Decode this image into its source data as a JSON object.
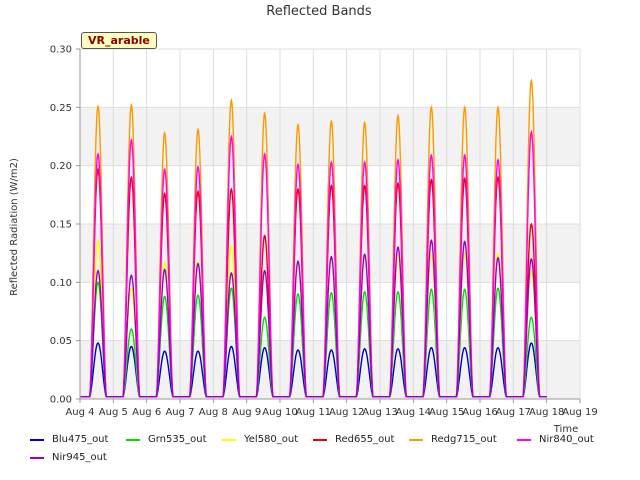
{
  "chart_data": {
    "type": "line",
    "title": "Reflected Bands",
    "xlabel": "Time",
    "ylabel": "Reflected Radiation (W/m2)",
    "ylim": [
      0.0,
      0.3
    ],
    "yticks": [
      "0.00",
      "0.05",
      "0.10",
      "0.15",
      "0.20",
      "0.25",
      "0.30"
    ],
    "xlim": [
      "Aug 4",
      "Aug 19"
    ],
    "xticks": [
      "Aug 4",
      "Aug 5",
      "Aug 6",
      "Aug 7",
      "Aug 8",
      "Aug 9",
      "Aug 10",
      "Aug 11",
      "Aug 12",
      "Aug 13",
      "Aug 14",
      "Aug 15",
      "Aug 16",
      "Aug 17",
      "Aug 18",
      "Aug 19"
    ],
    "grid": true,
    "legend_position": "bottom",
    "annotation": "VR_arable",
    "series": [
      {
        "name": "Blu475_out",
        "color": "#0000cc",
        "daily_peak": [
          0.048,
          0.045,
          0.041,
          0.041,
          0.045,
          0.044,
          0.042,
          0.042,
          0.043,
          0.043,
          0.044,
          0.044,
          0.044,
          0.048
        ]
      },
      {
        "name": "Grn535_out",
        "color": "#00dd00",
        "daily_peak": [
          0.1,
          0.06,
          0.088,
          0.089,
          0.095,
          0.07,
          0.09,
          0.091,
          0.092,
          0.092,
          0.094,
          0.094,
          0.095,
          0.07
        ]
      },
      {
        "name": "Yel580_out",
        "color": "#ffff00",
        "daily_peak": [
          0.136,
          0.095,
          0.117,
          0.118,
          0.131,
          0.11,
          0.118,
          0.121,
          0.123,
          0.123,
          0.124,
          0.125,
          0.125,
          0.11
        ]
      },
      {
        "name": "Red655_out",
        "color": "#ee0000",
        "daily_peak": [
          0.197,
          0.19,
          0.176,
          0.178,
          0.18,
          0.14,
          0.18,
          0.183,
          0.183,
          0.185,
          0.188,
          0.189,
          0.19,
          0.15
        ]
      },
      {
        "name": "Redg715_out",
        "color": "#ff9900",
        "daily_peak": [
          0.251,
          0.252,
          0.228,
          0.231,
          0.256,
          0.245,
          0.235,
          0.238,
          0.237,
          0.243,
          0.25,
          0.25,
          0.25,
          0.273
        ]
      },
      {
        "name": "Nir840_out",
        "color": "#ff00ff",
        "daily_peak": [
          0.21,
          0.222,
          0.197,
          0.199,
          0.225,
          0.21,
          0.201,
          0.203,
          0.203,
          0.205,
          0.209,
          0.209,
          0.205,
          0.229
        ]
      },
      {
        "name": "Nir945_out",
        "color": "#9900cc",
        "daily_peak": [
          0.11,
          0.106,
          0.111,
          0.116,
          0.108,
          0.11,
          0.118,
          0.122,
          0.124,
          0.13,
          0.136,
          0.135,
          0.121,
          0.12
        ]
      }
    ]
  }
}
